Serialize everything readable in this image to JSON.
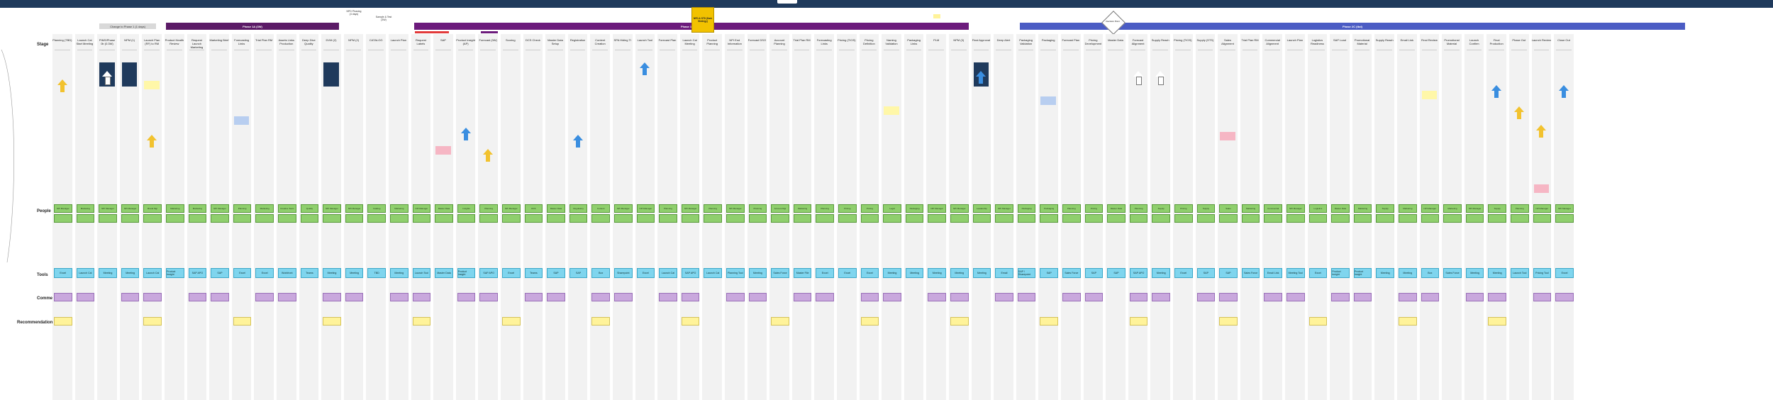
{
  "row_labels": {
    "stage": "Stage",
    "people": "People",
    "tools": "Tools",
    "comments": "Comments",
    "recommendations": "Recommendations"
  },
  "header": {
    "phase_change": "Change to Phase 1 (1 days)",
    "phase_1": "Phase 1A (3W)",
    "phase_2": "Phase 1B (14W)",
    "phase_3": "Phase 2C (tbd)",
    "highlight_note": "NPD & STD (Dark Strategy)",
    "decision": "Decision Point",
    "top_note_1": "NPD Phasing (4 days)",
    "top_note_2": "Sample & Test (3W)"
  },
  "stages": [
    "Planning (TBD)",
    "Launch Cal Start Meeting",
    "PIMS/Phase 0b (0.3W)",
    "NPM (1)",
    "Launch Plan (RF) to RM",
    "Product Health Review",
    "Request Launch Marketing",
    "Marketing Brief",
    "Forecasting Links",
    "Trial Plan RM",
    "Assets Links Production",
    "Deep Dive Quality",
    "DVM (2)",
    "NPM (2)",
    "CATALOG",
    "Launch Plan",
    "Request Labels",
    "SAP",
    "Product Insight (AP)",
    "Forecast (3W)",
    "Scoring",
    "DCS Check",
    "Master Data Setup",
    "Registration",
    "Content Creation",
    "SPA Hiding TI",
    "Launch Tool",
    "Forecast Plan",
    "Launch Cal Meeting",
    "Product Planning",
    "NPI End Information",
    "Forecast DSO",
    "Account Planning",
    "Trial Plan RM",
    "Forecasting Links",
    "Pricing (TIOS)",
    "Pricing Definition",
    "Naming Validation",
    "Packaging Links",
    "PLM",
    "NPM (3)",
    "Final Approval",
    "Deep Alert",
    "Packaging Validation",
    "Packaging",
    "Forecast Plan",
    "Pricing Development",
    "Master Data",
    "Forecast Alignment",
    "Supply Reach",
    "Pricing (TIOS)",
    "Supply (STS)",
    "Sales Alignment",
    "Trial Plan RM",
    "Commercial Alignment",
    "Launch Plan",
    "Logistics Readiness",
    "SAP Load",
    "Promotional Material",
    "Supply Reach",
    "Email Link",
    "Final Review",
    "Promotional Material",
    "Launch Confirm",
    "Final Production",
    "Phase Out",
    "Launch Review",
    "Close Out"
  ],
  "people": [
    "NPI Manager",
    "Marketing",
    "NPI Manager",
    "NPI Manager",
    "Brand Mgr",
    "Marketing",
    "Marketing",
    "NPI Manager",
    "Planning",
    "Marketing",
    "Creative Team",
    "Quality",
    "NPI Manager",
    "NPI Manager",
    "Catalog",
    "Marketing",
    "NPI Manager",
    "Master Data",
    "Insights",
    "Planning",
    "NPI Manager",
    "DCS",
    "Master Data",
    "Regulatory",
    "Content",
    "NPI Manager",
    "NPI Manager",
    "Planning",
    "NPI Manager",
    "Planning",
    "NPI Manager",
    "Planning",
    "Account Mgr",
    "Marketing",
    "Planning",
    "Pricing",
    "Pricing",
    "Legal",
    "Packaging",
    "NPI Manager",
    "NPI Manager",
    "Leadership",
    "NPI Manager",
    "Packaging",
    "Packaging",
    "Planning",
    "Pricing",
    "Master Data",
    "Planning",
    "Supply",
    "Pricing",
    "Supply",
    "Sales",
    "Marketing",
    "Commercial",
    "NPI Manager",
    "Logistics",
    "Master Data",
    "Marketing",
    "Supply",
    "Marketing",
    "NPI Manager",
    "Marketing",
    "NPI Manager",
    "Supply",
    "Planning",
    "NPI Manager",
    "NPI Manager"
  ],
  "tools": [
    "Excel",
    "Launch Cal",
    "Meeting",
    "Meeting",
    "Launch Cal",
    "Product Insight",
    "SAP APO",
    "SAP",
    "Excel",
    "Excel",
    "Workfront",
    "Teams",
    "Meeting",
    "Meeting",
    "TBD",
    "Meeting",
    "Launch Tool",
    "Master Data",
    "Product Insight",
    "SAP APO",
    "Excel",
    "Teams",
    "SAP",
    "SAP",
    "Box",
    "Sharepoint",
    "Excel",
    "Launch Cal",
    "SAP APO",
    "Launch Cal",
    "Planning Tool",
    "Meeting",
    "Sales Force",
    "Master File",
    "Excel",
    "Excel",
    "Excel",
    "Meeting",
    "Meeting",
    "Meeting",
    "Meeting",
    "Meeting",
    "Email",
    "SAP / Sharepoint",
    "SAP",
    "Sales Force",
    "SAP",
    "SAP",
    "SAP APO",
    "Meeting",
    "Excel",
    "SAP",
    "SAP",
    "Sales Force",
    "Email Link",
    "Meeting Tool",
    "Excel",
    "Product Insight",
    "Product Insight",
    "Meeting",
    "Meeting",
    "Box",
    "Sales Force",
    "Meeting",
    "Meeting",
    "Launch Tool",
    "Pricing Tool",
    "Excel"
  ],
  "colors": {
    "topbar": "#1f3a5c",
    "phase_1": "#5b1a66",
    "phase_2": "#6c1b7c",
    "phase_3": "#4b5cc4",
    "people": "#8fcf6d",
    "tools": "#7fd5ee",
    "comments": "#c9a8dd",
    "recommendations": "#fff39a",
    "arrow_blue": "#3a8ee0",
    "arrow_yellow": "#f2c22e",
    "highlight": "#f2c200"
  }
}
